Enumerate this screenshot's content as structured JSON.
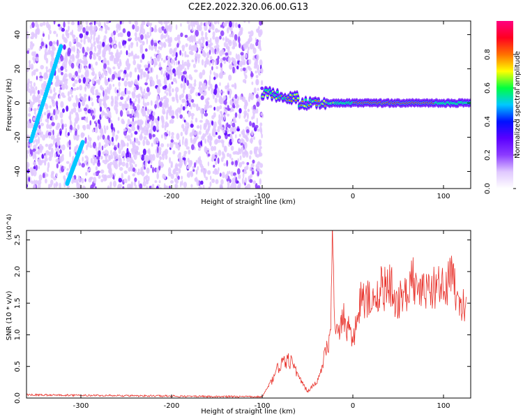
{
  "title": "C2E2.2022.320.06.00.G13",
  "chart_data": [
    {
      "type": "heatmap",
      "xlabel": "Height of straight line (km)",
      "ylabel": "Frequency (Hz)",
      "xlim": [
        -360,
        130
      ],
      "ylim": [
        -50,
        48
      ],
      "x_ticks": [
        -300,
        -200,
        -100,
        0,
        100
      ],
      "y_ticks": [
        -40,
        -20,
        0,
        20,
        40
      ],
      "colorbar": {
        "label": "Normalized spectral amplitude",
        "range": [
          0,
          1
        ],
        "ticks": [
          "0.0",
          "0.2",
          "0.4",
          "0.6",
          "0.8"
        ],
        "colormap": [
          "#ffffff",
          "#e0c8ff",
          "#8c3cff",
          "#5a00ff",
          "#0010ff",
          "#00c8ff",
          "#00ff40",
          "#ffff00",
          "#ff7000",
          "#ff0020",
          "#ff0080"
        ]
      },
      "features": [
        {
          "name": "diagonal streak",
          "x": [
            -355,
            -322
          ],
          "y": [
            -22,
            33
          ]
        },
        {
          "name": "lower streak",
          "x": [
            -315,
            -298
          ],
          "y": [
            -47,
            -23
          ]
        },
        {
          "name": "noise region",
          "x": [
            -360,
            -100
          ]
        },
        {
          "name": "0 Hz signal line",
          "x": [
            -100,
            130
          ],
          "y": 0
        }
      ]
    },
    {
      "type": "line",
      "xlabel": "Height of straight line (km)",
      "ylabel": "SNR (10 * v/v)",
      "y_multiplier": "(x10^4)",
      "xlim": [
        -360,
        130
      ],
      "ylim": [
        0,
        2.65
      ],
      "x_ticks": [
        -300,
        -200,
        -100,
        0,
        100
      ],
      "y_ticks": [
        "0.0",
        "0.5",
        "1.0",
        "1.5",
        "2.0",
        "2.5"
      ],
      "line_color": "#e8312a",
      "series": [
        {
          "x": [
            -360,
            -110,
            -100,
            -90,
            -80,
            -70,
            -60,
            -50,
            -40,
            -30,
            -25,
            -22,
            -20,
            -10,
            0,
            10,
            20,
            30,
            40,
            50,
            60,
            70,
            80,
            90,
            100,
            110,
            120,
            125
          ],
          "values": [
            0.05,
            0.02,
            0.03,
            0.25,
            0.55,
            0.6,
            0.35,
            0.1,
            0.25,
            0.7,
            1.0,
            2.6,
            1.0,
            1.25,
            0.9,
            1.6,
            1.5,
            1.7,
            1.8,
            1.5,
            1.7,
            1.9,
            1.6,
            1.8,
            1.7,
            1.9,
            1.4,
            1.6
          ]
        }
      ]
    }
  ]
}
